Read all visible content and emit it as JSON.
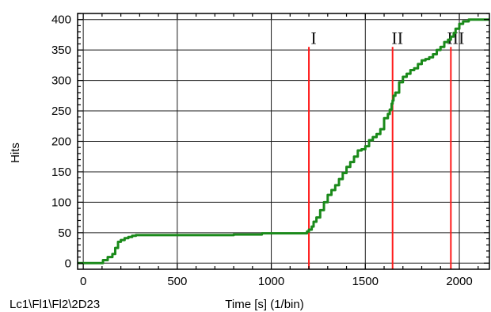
{
  "chart_data": {
    "type": "line",
    "title": "",
    "xlabel": "Time [s] (1/bin)",
    "ylabel": "Hits",
    "footer_label": "Lc1\\Fl1\\Fl2\\2D23",
    "xlim": [
      -30,
      2160
    ],
    "ylim": [
      -10,
      410
    ],
    "x_ticks": [
      0,
      500,
      1000,
      1500,
      2000
    ],
    "y_ticks": [
      0,
      50,
      100,
      150,
      200,
      250,
      300,
      350,
      400
    ],
    "x_tick_labels": [
      "0",
      "500",
      "1000",
      "1500",
      "2000"
    ],
    "y_tick_labels": [
      "0",
      "50",
      "100",
      "150",
      "200",
      "250",
      "300",
      "350",
      "400"
    ],
    "grid": true,
    "series": [
      {
        "color": "#1a8a1a",
        "x": [
          -30,
          0,
          50,
          95,
          105,
          130,
          155,
          170,
          185,
          200,
          220,
          240,
          260,
          280,
          320,
          400,
          500,
          600,
          700,
          800,
          900,
          950,
          1000,
          1100,
          1180,
          1190,
          1200,
          1215,
          1225,
          1240,
          1260,
          1280,
          1300,
          1320,
          1340,
          1360,
          1380,
          1400,
          1420,
          1440,
          1460,
          1480,
          1500,
          1520,
          1540,
          1560,
          1580,
          1600,
          1620,
          1630,
          1640,
          1645,
          1650,
          1660,
          1680,
          1700,
          1720,
          1740,
          1760,
          1780,
          1800,
          1820,
          1840,
          1860,
          1880,
          1900,
          1920,
          1940,
          1955,
          1970,
          1980,
          2000,
          2020,
          2050,
          2100,
          2160
        ],
        "y": [
          0,
          0,
          0,
          0,
          5,
          10,
          15,
          25,
          35,
          38,
          41,
          43,
          45,
          46,
          46,
          46,
          46,
          46,
          46,
          47,
          47,
          49,
          49,
          49,
          49,
          52,
          55,
          60,
          68,
          75,
          87,
          100,
          112,
          120,
          128,
          138,
          148,
          158,
          166,
          175,
          185,
          187,
          192,
          202,
          207,
          212,
          220,
          238,
          245,
          252,
          262,
          267,
          275,
          280,
          297,
          306,
          311,
          317,
          320,
          327,
          333,
          335,
          338,
          343,
          350,
          355,
          363,
          367,
          372,
          378,
          385,
          393,
          397,
          400,
          400,
          400
        ]
      }
    ],
    "markers": [
      {
        "label": "I",
        "x": 1200,
        "color": "#ff1a1a"
      },
      {
        "label": "II",
        "x": 1645,
        "color": "#ff1a1a"
      },
      {
        "label": "III",
        "x": 1955,
        "color": "#ff1a1a"
      }
    ],
    "marker_top_value": 355
  }
}
